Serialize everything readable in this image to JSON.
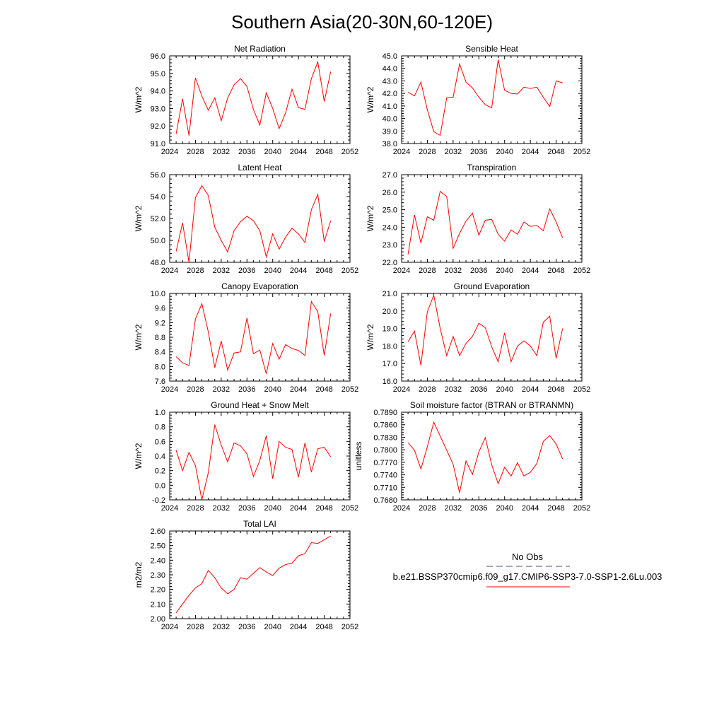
{
  "figure": {
    "title": "Southern Asia(20-30N,60-120E)"
  },
  "legend": {
    "entries": [
      {
        "label": "No Obs",
        "color": "#4b4b8c",
        "dash": true
      },
      {
        "label": "b.e21.BSSP370cmip6.f09_g17.CMIP6-SSP3-7.0-SSP1-2.6Lu.003",
        "color": "#ff0000",
        "dash": false
      }
    ]
  },
  "chart_data": [
    {
      "type": "line",
      "title": "Net Radiation",
      "ylabel": "W/m^2",
      "xlim": [
        2024,
        2052
      ],
      "ylim": [
        91.0,
        96.0
      ],
      "xticks": [
        2024,
        2028,
        2032,
        2036,
        2040,
        2044,
        2048,
        2052
      ],
      "yticks": [
        "91.0",
        "92.0",
        "93.0",
        "94.0",
        "95.0",
        "96.0"
      ],
      "x": [
        2025,
        2026,
        2027,
        2028,
        2029,
        2030,
        2031,
        2032,
        2033,
        2034,
        2035,
        2036,
        2037,
        2038,
        2039,
        2040,
        2041,
        2042,
        2043,
        2044,
        2045,
        2046,
        2047,
        2048,
        2049
      ],
      "series": [
        {
          "color": "#ff0000",
          "values": [
            91.55,
            93.55,
            91.45,
            94.75,
            93.7,
            92.9,
            93.6,
            92.3,
            93.6,
            94.35,
            94.7,
            94.25,
            92.95,
            92.05,
            93.9,
            93.0,
            91.85,
            92.75,
            94.1,
            93.05,
            92.95,
            94.7,
            95.65,
            93.4,
            95.1
          ]
        }
      ]
    },
    {
      "type": "line",
      "title": "Sensible Heat",
      "ylabel": "W/m^2",
      "xlim": [
        2024,
        2052
      ],
      "ylim": [
        38.0,
        45.0
      ],
      "xticks": [
        2024,
        2028,
        2032,
        2036,
        2040,
        2044,
        2048,
        2052
      ],
      "yticks": [
        "38.0",
        "39.0",
        "40.0",
        "41.0",
        "42.0",
        "43.0",
        "44.0",
        "45.0"
      ],
      "x": [
        2025,
        2026,
        2027,
        2028,
        2029,
        2030,
        2031,
        2032,
        2033,
        2034,
        2035,
        2036,
        2037,
        2038,
        2039,
        2040,
        2041,
        2042,
        2043,
        2044,
        2045,
        2046,
        2047,
        2048,
        2049
      ],
      "series": [
        {
          "color": "#ff0000",
          "values": [
            42.1,
            41.8,
            42.9,
            40.7,
            38.95,
            38.65,
            41.65,
            41.7,
            44.35,
            42.9,
            42.45,
            41.7,
            41.1,
            40.85,
            44.7,
            42.25,
            42.0,
            41.95,
            42.5,
            42.4,
            42.5,
            41.7,
            40.95,
            43.0,
            42.85
          ]
        }
      ]
    },
    {
      "type": "line",
      "title": "Latent Heat",
      "ylabel": "W/m^2",
      "xlim": [
        2024,
        2052
      ],
      "ylim": [
        48.0,
        56.0
      ],
      "xticks": [
        2024,
        2028,
        2032,
        2036,
        2040,
        2044,
        2048,
        2052
      ],
      "yticks": [
        "48.0",
        "50.0",
        "52.0",
        "54.0",
        "56.0"
      ],
      "x": [
        2025,
        2026,
        2027,
        2028,
        2029,
        2030,
        2031,
        2032,
        2033,
        2034,
        2035,
        2036,
        2037,
        2038,
        2039,
        2040,
        2041,
        2042,
        2043,
        2044,
        2045,
        2046,
        2047,
        2048,
        2049
      ],
      "series": [
        {
          "color": "#ff0000",
          "values": [
            49.0,
            51.6,
            48.0,
            53.9,
            55.0,
            54.1,
            51.2,
            50.0,
            48.95,
            50.9,
            51.7,
            52.2,
            51.8,
            50.9,
            48.5,
            50.6,
            49.2,
            50.3,
            51.1,
            50.6,
            49.8,
            52.8,
            54.2,
            49.9,
            51.8
          ]
        }
      ]
    },
    {
      "type": "line",
      "title": "Transpiration",
      "ylabel": "W/m^2",
      "xlim": [
        2024,
        2052
      ],
      "ylim": [
        22.0,
        27.0
      ],
      "xticks": [
        2024,
        2028,
        2032,
        2036,
        2040,
        2044,
        2048,
        2052
      ],
      "yticks": [
        "22.0",
        "23.0",
        "24.0",
        "25.0",
        "26.0",
        "27.0"
      ],
      "x": [
        2025,
        2026,
        2027,
        2028,
        2029,
        2030,
        2031,
        2032,
        2033,
        2034,
        2035,
        2036,
        2037,
        2038,
        2039,
        2040,
        2041,
        2042,
        2043,
        2044,
        2045,
        2046,
        2047,
        2048,
        2049
      ],
      "series": [
        {
          "color": "#ff0000",
          "values": [
            22.45,
            24.7,
            23.1,
            24.6,
            24.4,
            26.05,
            25.75,
            22.8,
            23.65,
            24.35,
            24.8,
            23.55,
            24.4,
            24.45,
            23.6,
            23.2,
            23.85,
            23.6,
            24.3,
            24.05,
            24.1,
            23.8,
            25.05,
            24.3,
            23.4
          ]
        }
      ]
    },
    {
      "type": "line",
      "title": "Canopy Evaporation",
      "ylabel": "W/m^2",
      "xlim": [
        2024,
        2052
      ],
      "ylim": [
        7.6,
        10.0
      ],
      "xticks": [
        2024,
        2028,
        2032,
        2036,
        2040,
        2044,
        2048,
        2052
      ],
      "yticks": [
        "7.6",
        "8.0",
        "8.4",
        "8.8",
        "9.2",
        "9.6",
        "10.0"
      ],
      "x": [
        2025,
        2026,
        2027,
        2028,
        2029,
        2030,
        2031,
        2032,
        2033,
        2034,
        2035,
        2036,
        2037,
        2038,
        2039,
        2040,
        2041,
        2042,
        2043,
        2044,
        2045,
        2046,
        2047,
        2048,
        2049
      ],
      "series": [
        {
          "color": "#ff0000",
          "values": [
            8.27,
            8.1,
            8.03,
            9.3,
            9.72,
            8.95,
            7.97,
            8.7,
            7.9,
            8.37,
            8.4,
            9.33,
            8.35,
            8.45,
            7.8,
            8.63,
            8.2,
            8.6,
            8.49,
            8.44,
            8.3,
            9.78,
            9.5,
            8.3,
            9.45
          ]
        }
      ]
    },
    {
      "type": "line",
      "title": "Ground Evaporation",
      "ylabel": "W/m^2",
      "xlim": [
        2024,
        2052
      ],
      "ylim": [
        16.0,
        21.0
      ],
      "xticks": [
        2024,
        2028,
        2032,
        2036,
        2040,
        2044,
        2048,
        2052
      ],
      "yticks": [
        "16.0",
        "17.0",
        "18.0",
        "19.0",
        "20.0",
        "21.0"
      ],
      "x": [
        2025,
        2026,
        2027,
        2028,
        2029,
        2030,
        2031,
        2032,
        2033,
        2034,
        2035,
        2036,
        2037,
        2038,
        2039,
        2040,
        2041,
        2042,
        2043,
        2044,
        2045,
        2046,
        2047,
        2048,
        2049
      ],
      "series": [
        {
          "color": "#ff0000",
          "values": [
            18.25,
            18.85,
            16.9,
            19.95,
            20.9,
            19.0,
            17.45,
            18.55,
            17.45,
            18.15,
            18.55,
            19.3,
            19.05,
            17.95,
            17.1,
            18.75,
            17.1,
            18.0,
            18.3,
            18.0,
            17.45,
            19.35,
            19.7,
            17.3,
            19.0
          ]
        }
      ]
    },
    {
      "type": "line",
      "title": "Ground Heat + Snow Melt",
      "ylabel": "W/m^2",
      "xlim": [
        2024,
        2052
      ],
      "ylim": [
        -0.2,
        1.0
      ],
      "xticks": [
        2024,
        2028,
        2032,
        2036,
        2040,
        2044,
        2048,
        2052
      ],
      "yticks": [
        "-0.2",
        "0.0",
        "0.2",
        "0.4",
        "0.6",
        "0.8",
        "1.0"
      ],
      "x": [
        2025,
        2026,
        2027,
        2028,
        2029,
        2030,
        2031,
        2032,
        2033,
        2034,
        2035,
        2036,
        2037,
        2038,
        2039,
        2040,
        2041,
        2042,
        2043,
        2044,
        2045,
        2046,
        2047,
        2048,
        2049
      ],
      "series": [
        {
          "color": "#ff0000",
          "values": [
            0.48,
            0.2,
            0.45,
            0.27,
            -0.2,
            0.17,
            0.83,
            0.55,
            0.32,
            0.58,
            0.54,
            0.43,
            0.12,
            0.34,
            0.68,
            0.09,
            0.6,
            0.52,
            0.49,
            0.11,
            0.58,
            0.18,
            0.5,
            0.52,
            0.39
          ]
        }
      ]
    },
    {
      "type": "line",
      "title": "Soil moisture factor (BTRAN or BTRANMN)",
      "ylabel": "unitless",
      "xlim": [
        2024,
        2052
      ],
      "ylim": [
        0.768,
        0.789
      ],
      "xticks": [
        2024,
        2028,
        2032,
        2036,
        2040,
        2044,
        2048,
        2052
      ],
      "yticks": [
        "0.7680",
        "0.7710",
        "0.7740",
        "0.7770",
        "0.7800",
        "0.7830",
        "0.7860",
        "0.7890"
      ],
      "x": [
        2025,
        2026,
        2027,
        2028,
        2029,
        2030,
        2031,
        2032,
        2033,
        2034,
        2035,
        2036,
        2037,
        2038,
        2039,
        2040,
        2041,
        2042,
        2043,
        2044,
        2045,
        2046,
        2047,
        2048,
        2049
      ],
      "series": [
        {
          "color": "#ff0000",
          "values": [
            0.7817,
            0.7799,
            0.7754,
            0.7807,
            0.7866,
            0.7833,
            0.7799,
            0.7765,
            0.7697,
            0.7773,
            0.7741,
            0.7795,
            0.7829,
            0.7764,
            0.7719,
            0.7758,
            0.7737,
            0.7769,
            0.7737,
            0.7746,
            0.7767,
            0.782,
            0.7834,
            0.7814,
            0.7778
          ]
        }
      ]
    },
    {
      "type": "line",
      "title": "Total LAI",
      "ylabel": "m2/m2",
      "xlim": [
        2024,
        2052
      ],
      "ylim": [
        2.0,
        2.6
      ],
      "xticks": [
        2024,
        2028,
        2032,
        2036,
        2040,
        2044,
        2048,
        2052
      ],
      "yticks": [
        "2.00",
        "2.10",
        "2.20",
        "2.30",
        "2.40",
        "2.50",
        "2.60"
      ],
      "x": [
        2025,
        2026,
        2027,
        2028,
        2029,
        2030,
        2031,
        2032,
        2033,
        2034,
        2035,
        2036,
        2037,
        2038,
        2039,
        2040,
        2041,
        2042,
        2043,
        2044,
        2045,
        2046,
        2047,
        2048,
        2049
      ],
      "series": [
        {
          "color": "#ff0000",
          "values": [
            2.04,
            2.1,
            2.16,
            2.21,
            2.24,
            2.33,
            2.28,
            2.21,
            2.17,
            2.2,
            2.28,
            2.27,
            2.31,
            2.35,
            2.32,
            2.295,
            2.345,
            2.37,
            2.38,
            2.43,
            2.445,
            2.52,
            2.515,
            2.54,
            2.565
          ]
        }
      ]
    }
  ]
}
